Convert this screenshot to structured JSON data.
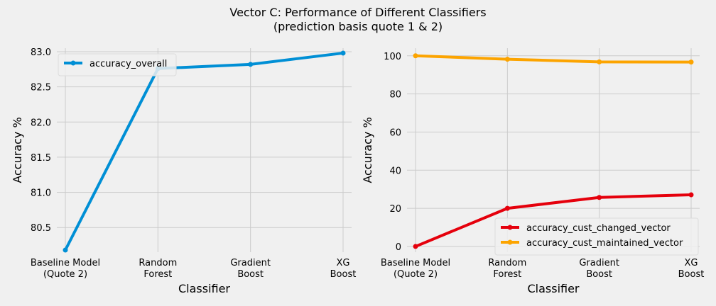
{
  "figure": {
    "title_line1": "Vector C: Performance of Different Classifiers",
    "title_line2": "(prediction basis quote 1 & 2)"
  },
  "chart_data": [
    {
      "type": "line",
      "categories": [
        [
          "Baseline Model",
          "(Quote 2)"
        ],
        [
          "Random",
          "Forest"
        ],
        [
          "Gradient",
          "Boost"
        ],
        [
          "XG",
          "Boost"
        ]
      ],
      "series": [
        {
          "name": "accuracy_overall",
          "values": [
            80.18,
            82.76,
            82.82,
            82.98
          ],
          "color": "#008fd5"
        }
      ],
      "xlabel": "Classifier",
      "ylabel": "Accuracy %",
      "ylim": [
        80.15,
        83.05
      ],
      "yticks": [
        80.5,
        81.0,
        81.5,
        82.0,
        82.5,
        83.0
      ],
      "ytick_labels": [
        "80.5",
        "81.0",
        "81.5",
        "82.0",
        "82.5",
        "83.0"
      ],
      "grid": true,
      "legend_position": "upper-left"
    },
    {
      "type": "line",
      "categories": [
        [
          "Baseline Model",
          "(Quote 2)"
        ],
        [
          "Random",
          "Forest"
        ],
        [
          "Gradient",
          "Boost"
        ],
        [
          "XG",
          "Boost"
        ]
      ],
      "series": [
        {
          "name": "accuracy_cust_changed_vector",
          "values": [
            0,
            20.0,
            25.7,
            27.1
          ],
          "color": "#e5000c"
        },
        {
          "name": "accuracy_cust_maintained_vector",
          "values": [
            100,
            98.2,
            96.8,
            96.7
          ],
          "color": "#fca400"
        }
      ],
      "xlabel": "Classifier",
      "ylabel": "Accuracy %",
      "ylim": [
        -3,
        104
      ],
      "yticks": [
        0,
        20,
        40,
        60,
        80,
        100
      ],
      "ytick_labels": [
        "0",
        "20",
        "40",
        "60",
        "80",
        "100"
      ],
      "grid": true,
      "legend_position": "lower-right"
    }
  ]
}
